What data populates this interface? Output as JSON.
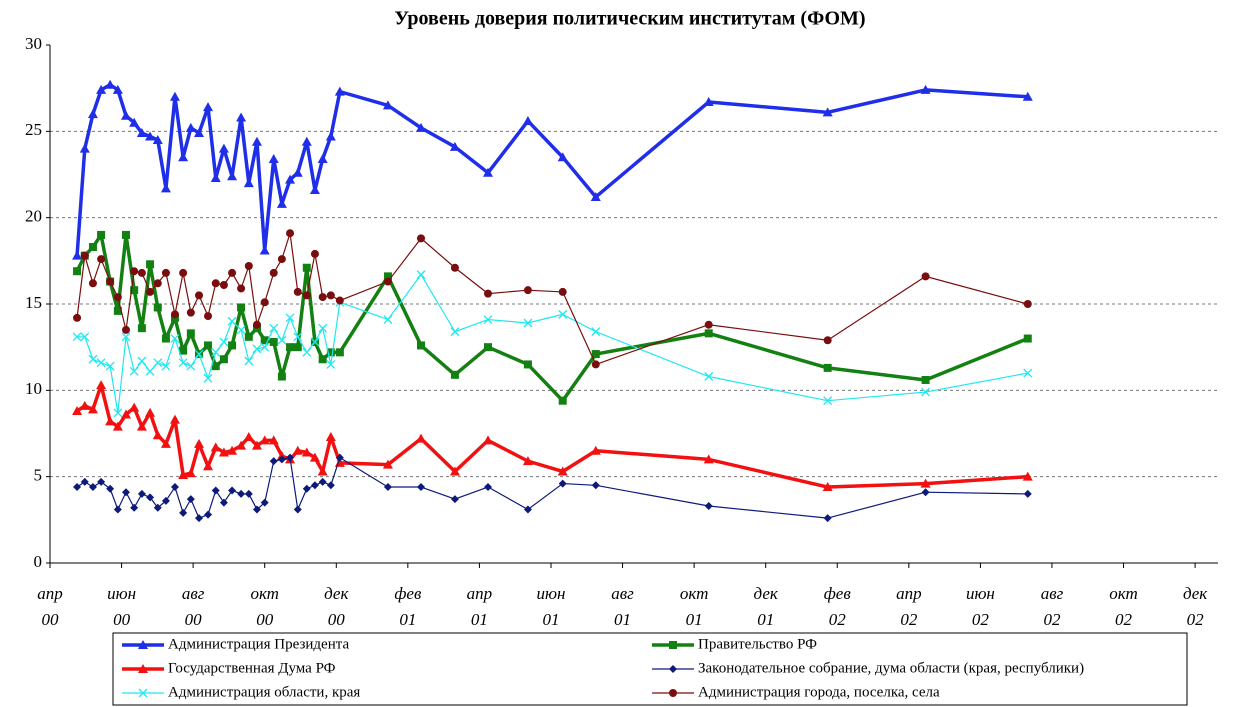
{
  "chart_data": {
    "type": "line",
    "title": "Уровень доверия политическим институтам (ФОМ)",
    "x": [
      2000.313,
      2000.331,
      2000.35,
      2000.369,
      2000.39,
      2000.408,
      2000.427,
      2000.446,
      2000.464,
      2000.483,
      2000.501,
      2000.52,
      2000.541,
      2000.56,
      2000.578,
      2000.597,
      2000.618,
      2000.636,
      2000.655,
      2000.674,
      2000.695,
      2000.713,
      2000.732,
      2000.75,
      2000.771,
      2000.79,
      2000.809,
      2000.827,
      2000.848,
      2000.867,
      2000.885,
      2000.904,
      2000.925,
      2001.037,
      2001.114,
      2001.193,
      2001.27,
      2001.363,
      2001.444,
      2001.521,
      2001.784,
      2002.061,
      2002.289,
      2002.527
    ],
    "series": [
      {
        "name": "Администрация Президента",
        "color": "#1f2ee8",
        "marker": "triangle",
        "width": 3.5,
        "values": [
          17.8,
          24,
          26,
          27.4,
          27.7,
          27.4,
          25.9,
          25.5,
          24.9,
          24.7,
          24.5,
          21.7,
          27,
          23.5,
          25.2,
          24.9,
          26.4,
          22.3,
          24,
          22.4,
          25.8,
          22,
          24.4,
          18.1,
          23.4,
          20.8,
          22.2,
          22.6,
          24.4,
          21.6,
          23.4,
          24.7,
          27.3,
          26.5,
          25.2,
          24.1,
          22.6,
          25.6,
          23.5,
          21.2,
          26.7,
          26.1,
          27.4,
          27
        ]
      },
      {
        "name": "Правительство РФ",
        "color": "#138012",
        "marker": "square",
        "width": 3.5,
        "values": [
          16.9,
          17.8,
          18.3,
          19,
          16.3,
          14.6,
          19,
          15.8,
          13.6,
          17.3,
          14.8,
          13,
          14.2,
          12.3,
          13.3,
          12.1,
          12.6,
          11.4,
          11.8,
          12.6,
          14.8,
          13.1,
          13.6,
          12.9,
          12.8,
          10.8,
          12.5,
          12.5,
          17.1,
          12.8,
          11.8,
          12.2,
          12.2,
          16.6,
          12.6,
          10.9,
          12.5,
          11.5,
          9.4,
          12.1,
          13.3,
          11.3,
          10.6,
          13
        ]
      },
      {
        "name": "Государственная Дума РФ",
        "color": "#f21010",
        "marker": "triangle",
        "width": 3.5,
        "values": [
          8.8,
          9.1,
          8.9,
          10.3,
          8.2,
          7.9,
          8.6,
          9,
          7.9,
          8.7,
          7.4,
          6.9,
          8.3,
          5.1,
          5.2,
          6.9,
          5.6,
          6.7,
          6.4,
          6.5,
          6.8,
          7.3,
          6.8,
          7.1,
          7.1,
          6.2,
          6,
          6.5,
          6.4,
          6.1,
          5.3,
          7.3,
          5.8,
          5.7,
          7.2,
          5.3,
          7.1,
          5.9,
          5.3,
          6.5,
          6,
          4.4,
          4.6,
          5
        ]
      },
      {
        "name": "Законодательное собрание, дума области (края, республики)",
        "color": "#0d1a7a",
        "marker": "diamond",
        "width": 1.2,
        "values": [
          4.4,
          4.7,
          4.4,
          4.7,
          4.3,
          3.1,
          4.1,
          3.2,
          4,
          3.8,
          3.2,
          3.6,
          4.4,
          2.9,
          3.7,
          2.6,
          2.8,
          4.2,
          3.5,
          4.2,
          4,
          4,
          3.1,
          3.5,
          5.9,
          6,
          6.1,
          3.1,
          4.3,
          4.5,
          4.7,
          4.5,
          6.1,
          4.4,
          4.4,
          3.7,
          4.4,
          3.1,
          4.6,
          4.5,
          3.3,
          2.6,
          4.1,
          4
        ]
      },
      {
        "name": "Администрация области, края",
        "color": "#1ee8f0",
        "marker": "x",
        "width": 1.2,
        "values": [
          13.1,
          13.1,
          11.8,
          11.6,
          11.4,
          8.7,
          13.1,
          11.1,
          11.7,
          11.1,
          11.6,
          11.4,
          13,
          11.6,
          11.4,
          12.1,
          10.7,
          12.2,
          12.8,
          14,
          13.5,
          11.7,
          12.4,
          12.5,
          13.6,
          12.9,
          14.2,
          13.1,
          12.2,
          12.8,
          13.6,
          11.5,
          15.1,
          14.1,
          16.7,
          13.4,
          14.1,
          13.9,
          14.4,
          13.4,
          10.8,
          9.4,
          9.9,
          11
        ]
      },
      {
        "name": "Администрация города, поселка, села",
        "color": "#7a0e0e",
        "marker": "circle",
        "width": 1.2,
        "values": [
          14.2,
          17.8,
          16.2,
          17.6,
          16.3,
          15.4,
          13.5,
          16.9,
          16.8,
          15.7,
          16.2,
          16.8,
          14.4,
          16.8,
          14.5,
          15.5,
          14.3,
          16.2,
          16.1,
          16.8,
          15.9,
          17.2,
          13.8,
          15.1,
          16.8,
          17.6,
          19.1,
          15.7,
          15.5,
          17.9,
          15.4,
          15.5,
          15.2,
          16.3,
          18.8,
          17.1,
          15.6,
          15.8,
          15.7,
          11.5,
          13.8,
          12.9,
          16.6,
          15
        ]
      }
    ],
    "xlim": [
      2000.25,
      2002.97
    ],
    "xticks": [
      {
        "value": 2000.25,
        "label": "апр 00"
      },
      {
        "value": 2000.4167,
        "label": "июн 00"
      },
      {
        "value": 2000.5833,
        "label": "авг 00"
      },
      {
        "value": 2000.75,
        "label": "окт 00"
      },
      {
        "value": 2000.9167,
        "label": "дек 00"
      },
      {
        "value": 2001.0833,
        "label": "фев 01"
      },
      {
        "value": 2001.25,
        "label": "апр 01"
      },
      {
        "value": 2001.4167,
        "label": "июн 01"
      },
      {
        "value": 2001.5833,
        "label": "авг 01"
      },
      {
        "value": 2001.75,
        "label": "окт 01"
      },
      {
        "value": 2001.9167,
        "label": "дек 01"
      },
      {
        "value": 2002.0833,
        "label": "фев 02"
      },
      {
        "value": 2002.25,
        "label": "апр 02"
      },
      {
        "value": 2002.4167,
        "label": "июн 02"
      },
      {
        "value": 2002.5833,
        "label": "авг 02"
      },
      {
        "value": 2002.75,
        "label": "окт 02"
      },
      {
        "value": 2002.9167,
        "label": "дек 02"
      }
    ],
    "ylim": [
      0,
      30
    ],
    "yticks": [
      0,
      5,
      10,
      15,
      20,
      25,
      30
    ],
    "grid": true,
    "legend": "bottom"
  }
}
